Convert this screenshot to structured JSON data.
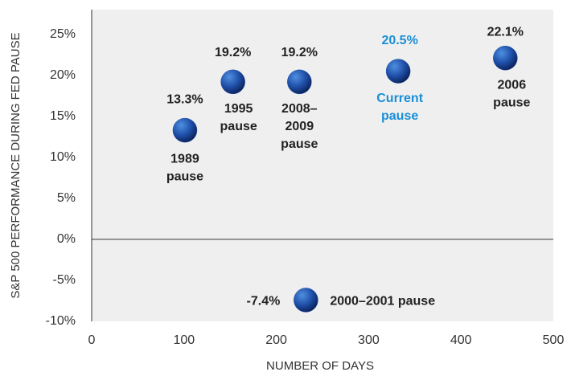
{
  "chart_data": {
    "type": "scatter",
    "x_label": "NUMBER OF DAYS",
    "y_label": "S&P 500 PERFORMANCE DURING FED PAUSE",
    "x": [
      101,
      153,
      225,
      232,
      332,
      448
    ],
    "values": [
      13.3,
      19.2,
      19.2,
      -7.4,
      20.5,
      22.1
    ],
    "value_labels": [
      "13.3%",
      "19.2%",
      "19.2%",
      "-7.4%",
      "20.5%",
      "22.1%"
    ],
    "labels": [
      [
        "1989",
        "pause"
      ],
      [
        "1995",
        "pause"
      ],
      [
        "2008–",
        "2009",
        "pause"
      ],
      [
        "2000–2001 pause"
      ],
      [
        "Current",
        "pause"
      ],
      [
        "2006",
        "pause"
      ]
    ],
    "label_colors": [
      "#222222",
      "#222222",
      "#222222",
      "#222222",
      "#1a8fd6",
      "#222222"
    ],
    "color": "#1f4fa8",
    "xlim": [
      0,
      500
    ],
    "xticks": [
      0,
      100,
      200,
      300,
      400,
      500
    ],
    "ylim": [
      -10,
      28
    ],
    "yticks": [
      {
        "value": -10,
        "label": "-10%"
      },
      {
        "value": -5,
        "label": "-5%"
      },
      {
        "value": 0,
        "label": "0%"
      },
      {
        "value": 5,
        "label": "5%"
      },
      {
        "value": 10,
        "label": "10%"
      },
      {
        "value": 15,
        "label": "15%"
      },
      {
        "value": 20,
        "label": "20%"
      },
      {
        "value": 25,
        "label": "25%"
      }
    ]
  }
}
